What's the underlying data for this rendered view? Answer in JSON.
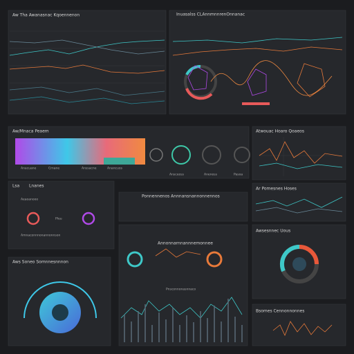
{
  "panels": [
    {
      "title": "Aw Tha Awanasnac Kqoennenon"
    },
    {
      "title": "Inuasalss CLAnnmnnrenOnnanac"
    },
    {
      "title": "Aw/Mnaca Peaem",
      "labels": [
        "Anacuane",
        "Crnane",
        "Anssacne",
        "Anancuos",
        "Ansceoss",
        "Anenoss",
        "Pasoa"
      ]
    },
    {
      "title": "Atwouac Hoaro Qoaeos"
    },
    {
      "tabs": [
        "Lsa",
        "Lnanes"
      ],
      "subtitle": "Aeaoanooo",
      "label": "Pleu",
      "footer": "Amnaconnnonannonnson"
    },
    {
      "title": "Ponnennenos Annnansnannonnennos"
    },
    {
      "title": "Ar Pomesnes Hoses"
    },
    {
      "title": "Awsesnnec Uous"
    },
    {
      "title": "Aws Soneo Somnnesnnnon"
    },
    {
      "title": "Annonnarnnannnemonnee",
      "subtitle": "Pnsconnonasnnaco"
    },
    {
      "title": "Bsomes Cennonnonnes"
    }
  ]
}
